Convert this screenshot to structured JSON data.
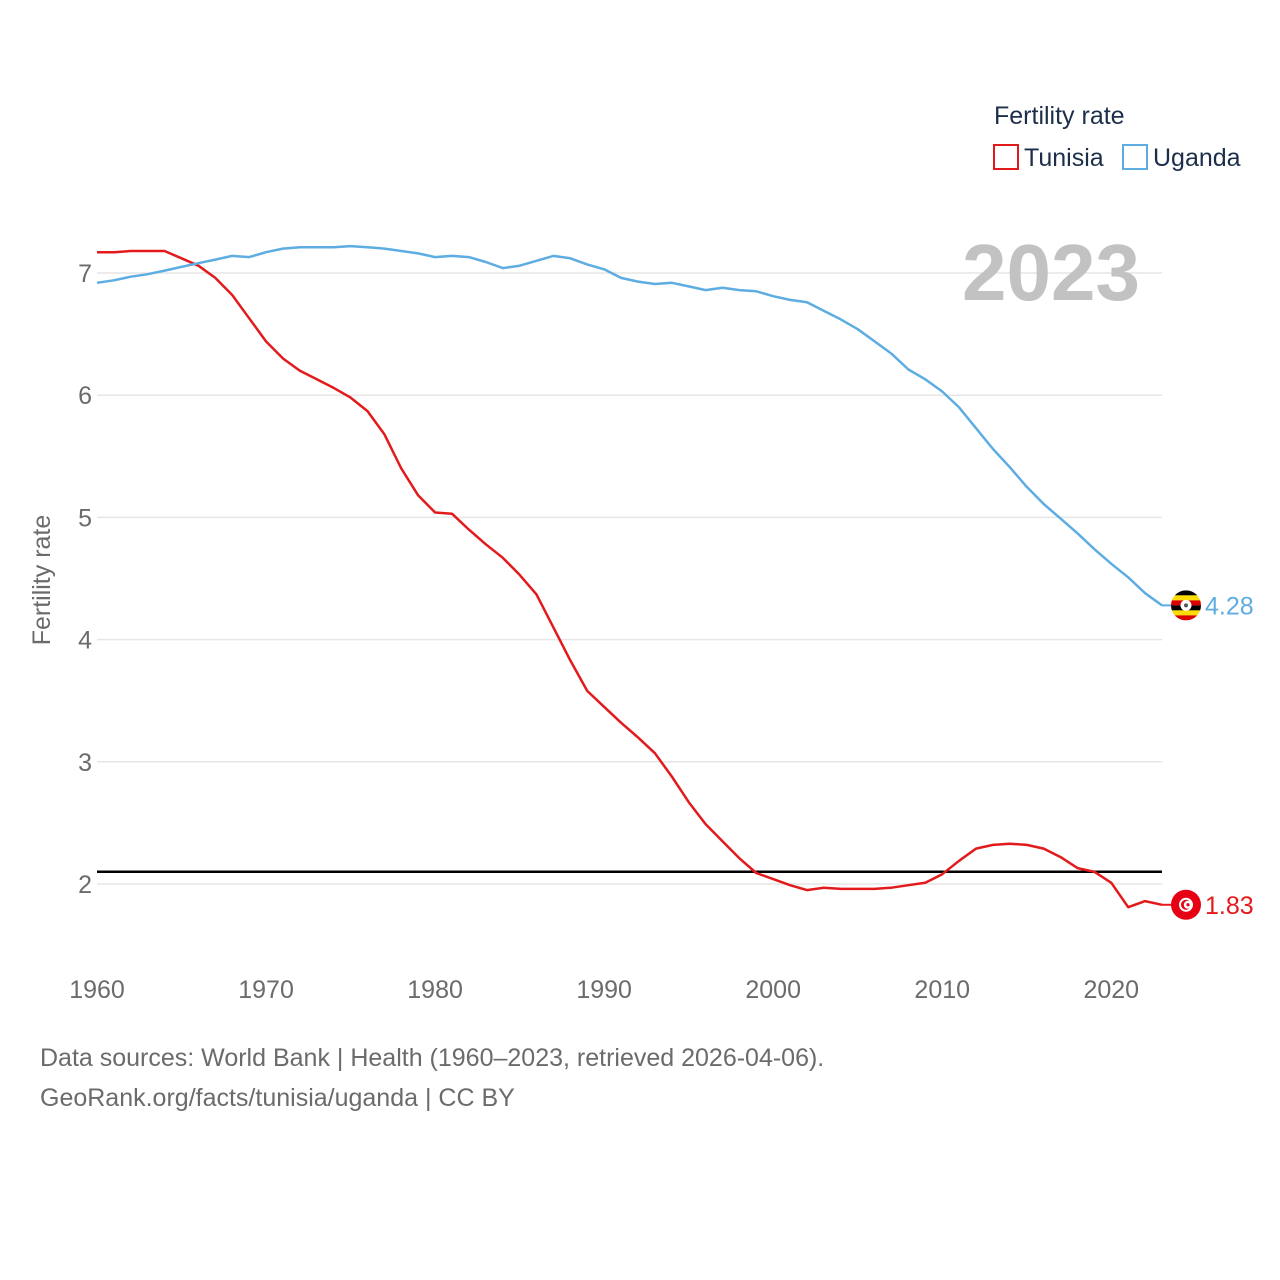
{
  "chart_data": {
    "type": "line",
    "title": "",
    "xlabel": "",
    "ylabel": "Fertility rate",
    "legend_title": "Fertility rate",
    "legend_position": "top-right",
    "year_label": "2023",
    "xlim": [
      1960,
      2023
    ],
    "ylim": [
      1.5,
      7.4
    ],
    "x_ticks": [
      1960,
      1970,
      1980,
      1990,
      2000,
      2010,
      2020
    ],
    "y_ticks": [
      2,
      3,
      4,
      5,
      6,
      7
    ],
    "reference_line": 2.1,
    "grid": true,
    "x": [
      1960,
      1961,
      1962,
      1963,
      1964,
      1965,
      1966,
      1967,
      1968,
      1969,
      1970,
      1971,
      1972,
      1973,
      1974,
      1975,
      1976,
      1977,
      1978,
      1979,
      1980,
      1981,
      1982,
      1983,
      1984,
      1985,
      1986,
      1987,
      1988,
      1989,
      1990,
      1991,
      1992,
      1993,
      1994,
      1995,
      1996,
      1997,
      1998,
      1999,
      2000,
      2001,
      2002,
      2003,
      2004,
      2005,
      2006,
      2007,
      2008,
      2009,
      2010,
      2011,
      2012,
      2013,
      2014,
      2015,
      2016,
      2017,
      2018,
      2019,
      2020,
      2021,
      2022,
      2023
    ],
    "series": [
      {
        "name": "Tunisia",
        "color": "#e31a1c",
        "end_label": "1.83",
        "flag": "tunisia-flag",
        "values": [
          7.17,
          7.17,
          7.18,
          7.18,
          7.18,
          7.12,
          7.06,
          6.96,
          6.82,
          6.63,
          6.44,
          6.3,
          6.2,
          6.13,
          6.06,
          5.98,
          5.87,
          5.68,
          5.4,
          5.18,
          5.04,
          5.03,
          4.9,
          4.78,
          4.67,
          4.53,
          4.37,
          4.1,
          3.83,
          3.58,
          3.45,
          3.32,
          3.2,
          3.07,
          2.88,
          2.67,
          2.49,
          2.35,
          2.21,
          2.09,
          2.04,
          1.99,
          1.95,
          1.97,
          1.96,
          1.96,
          1.96,
          1.97,
          1.99,
          2.01,
          2.08,
          2.19,
          2.29,
          2.32,
          2.33,
          2.32,
          2.29,
          2.22,
          2.13,
          2.1,
          2.01,
          1.81,
          1.86,
          1.83
        ]
      },
      {
        "name": "Uganda",
        "color": "#5dade2",
        "end_label": "4.28",
        "flag": "uganda-flag",
        "values": [
          6.92,
          6.94,
          6.97,
          6.99,
          7.02,
          7.05,
          7.08,
          7.11,
          7.14,
          7.13,
          7.17,
          7.2,
          7.21,
          7.21,
          7.21,
          7.22,
          7.21,
          7.2,
          7.18,
          7.16,
          7.13,
          7.14,
          7.13,
          7.09,
          7.04,
          7.06,
          7.1,
          7.14,
          7.12,
          7.07,
          7.03,
          6.96,
          6.93,
          6.91,
          6.92,
          6.89,
          6.86,
          6.88,
          6.86,
          6.85,
          6.81,
          6.78,
          6.76,
          6.69,
          6.62,
          6.54,
          6.44,
          6.34,
          6.21,
          6.13,
          6.03,
          5.9,
          5.73,
          5.56,
          5.41,
          5.25,
          5.11,
          4.99,
          4.87,
          4.74,
          4.62,
          4.51,
          4.38,
          4.28
        ]
      }
    ]
  },
  "footer": {
    "source_line": "Data sources: World Bank | Health (1960–2023, retrieved 2026-04-06).",
    "attribution": "GeoRank.org/facts/tunisia/uganda | CC BY"
  }
}
